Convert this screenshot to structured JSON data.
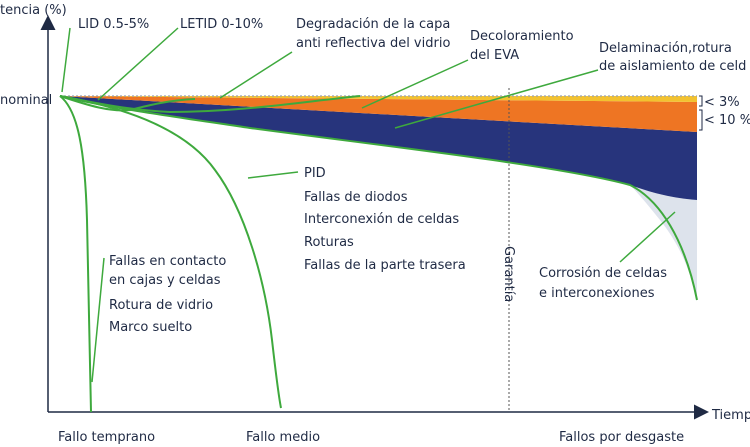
{
  "axes": {
    "y_label": "tencia (%)",
    "x_label": "Tiemp",
    "nominal_label": "nominal"
  },
  "top_labels": {
    "lid": "LID 0.5-5%",
    "letid": "LETID 0-10%",
    "degradation_line1": "Degradación de la capa",
    "degradation_line2": "anti reflectiva del vidrio",
    "decolor_line1": "Decoloramiento",
    "decolor_line2": "del EVA",
    "delam_line1": "Delaminación,rotura",
    "delam_line2": "de aislamiento de celd"
  },
  "bands": {
    "pct3": "< 3%",
    "pct10": "< 10 %"
  },
  "middle_list": [
    "PID",
    "Fallas de diodos",
    "Interconexión de celdas",
    "Roturas",
    "Fallas de la parte trasera"
  ],
  "early_list": {
    "contact_line1": "Fallas en contacto",
    "contact_line2": "en cajas y celdas",
    "glass": "Rotura de vidrio",
    "frame": "Marco suelto"
  },
  "warranty": "Garantía",
  "corrosion_line1": "Corrosión de celdas",
  "corrosion_line2": "e interconexiones",
  "phases": {
    "early": "Fallo temprano",
    "mid": "Fallo medio",
    "wear": "Fallos por desgaste"
  },
  "colors": {
    "yellow": "#f2c230",
    "orange": "#ee7523",
    "navy": "#27347c",
    "light": "#dde3ec",
    "green": "#3ea93d",
    "text": "#1f2a44"
  }
}
